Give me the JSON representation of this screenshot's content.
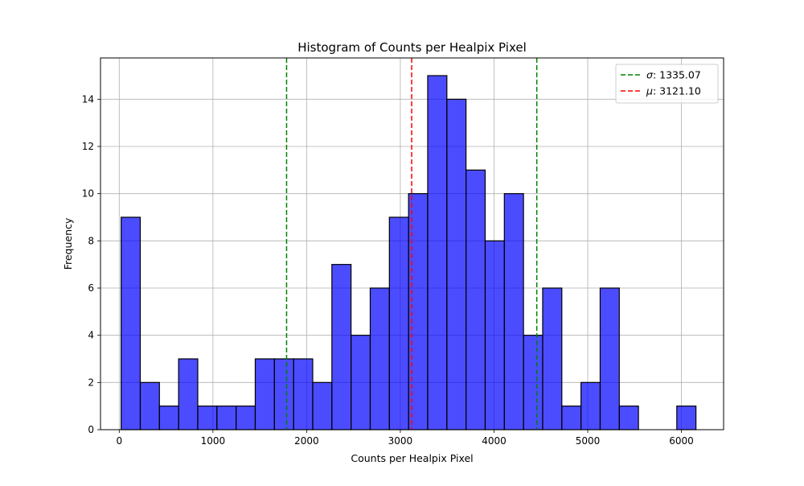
{
  "chart_data": {
    "type": "bar",
    "title": "Histogram of Counts per Healpix Pixel",
    "xlabel": "Counts per Healpix Pixel",
    "ylabel": "Frequency",
    "xlim": [
      -200,
      6450
    ],
    "ylim": [
      0,
      15.75
    ],
    "grid": true,
    "legend_position": "top-right",
    "bar_color": "#0000ff",
    "bar_edge_color": "#000000",
    "bar_alpha": 0.7,
    "x_ticks": [
      0,
      1000,
      2000,
      3000,
      4000,
      5000,
      6000
    ],
    "y_ticks": [
      0,
      2,
      4,
      6,
      8,
      10,
      12,
      14
    ],
    "bin_start": 20,
    "bin_width": 204.5,
    "values": [
      9,
      2,
      1,
      3,
      1,
      1,
      1,
      3,
      3,
      3,
      2,
      7,
      4,
      6,
      9,
      10,
      15,
      14,
      11,
      8,
      10,
      4,
      6,
      1,
      2,
      6,
      1,
      0,
      0,
      1
    ],
    "annotations": [
      {
        "label_prefix": "σ",
        "label": ": 1335.07",
        "color": "#008000",
        "style": "dashed",
        "lines_x": [
          1786.03,
          4456.17
        ]
      },
      {
        "label_prefix": "μ",
        "label": ": 3121.10",
        "color": "#ff0000",
        "style": "dashed",
        "lines_x": [
          3121.1
        ]
      }
    ]
  }
}
